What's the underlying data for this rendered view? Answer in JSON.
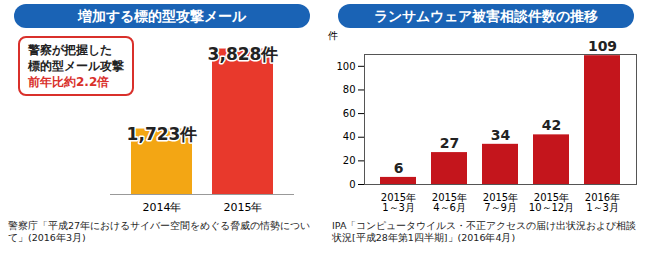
{
  "chart_data": [
    {
      "type": "bar",
      "title": "増加する標的型攻撃メール",
      "annotations": [
        "警察が把握した",
        "標的型メール攻撃",
        "前年比約2.2倍"
      ],
      "categories": [
        "2014年",
        "2015年"
      ],
      "values": [
        1723,
        3828
      ],
      "value_labels": [
        "1,723件",
        "3,828件"
      ],
      "colors": [
        "#f3a614",
        "#e8392c"
      ],
      "ylim": [
        0,
        4000
      ],
      "tick_labels": "x",
      "data_labels": true,
      "caption": "警察庁「平成27年におけるサイバー空間をめぐる脅威の情勢について」(2016年3月)"
    },
    {
      "type": "bar",
      "title": "ランサムウェア被害相談件数の推移",
      "ylabel": "件",
      "categories": [
        "2015年\n1～3月",
        "2015年\n4～6月",
        "2015年\n7～9月",
        "2015年\n10～12月",
        "2016年\n1～3月"
      ],
      "values": [
        6,
        27,
        34,
        42,
        109
      ],
      "color": "#c4151c",
      "ylim": [
        0,
        110
      ],
      "yticks": [
        0,
        20,
        40,
        60,
        80,
        100
      ],
      "grid": false,
      "data_labels": true,
      "caption": "IPA「コンピュータウイルス・不正アクセスの届け出状況および相談状況[平成28年第1四半期]」(2016年4月)"
    }
  ]
}
